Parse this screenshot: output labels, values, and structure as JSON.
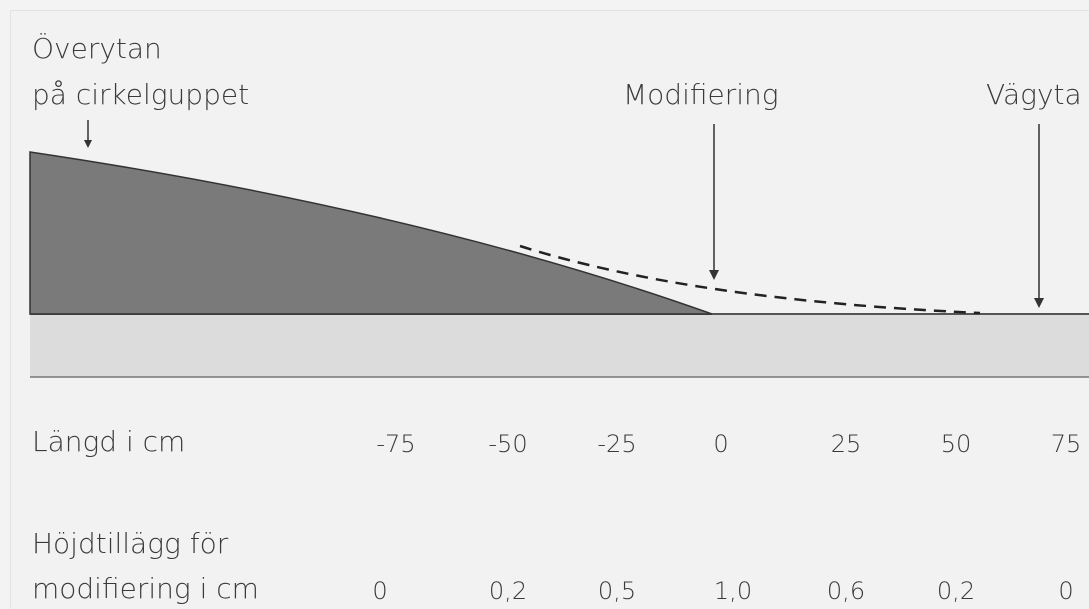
{
  "diagram": {
    "labels": {
      "surface_line1": "Överytan",
      "surface_line2": "på cirkelguppet",
      "modification": "Modifiering",
      "road_surface": "Vägyta"
    }
  },
  "table": {
    "length_label": "Längd i cm",
    "height_label_line1": "Höjdtillägg för",
    "height_label_line2": "modifiering i cm",
    "length_values": [
      "-75",
      "-50",
      "-25",
      "0",
      "25",
      "50",
      "75"
    ],
    "height_values": [
      "0",
      "0,2",
      "0,5",
      "1,0",
      "0,6",
      "0,2",
      "0"
    ]
  }
}
